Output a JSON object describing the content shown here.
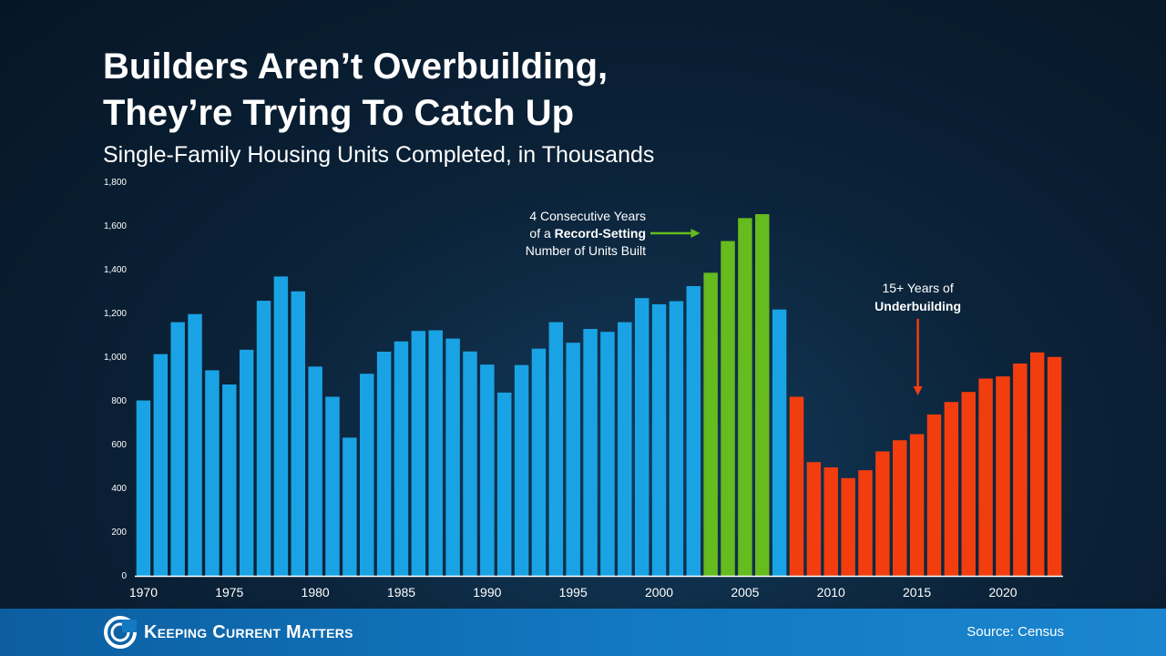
{
  "title_line1": "Builders Aren’t Overbuilding,",
  "title_line2": "They’re Trying To Catch Up",
  "subtitle": "Single-Family Housing Units Completed, in Thousands",
  "footer": {
    "brand": "Keeping Current Matters",
    "source": "Source: Census"
  },
  "colors": {
    "historic": "#1aa3e4",
    "record": "#66bb1e",
    "underbuilding": "#f23d0f",
    "background": "#0b2238",
    "footer": "#1279c2"
  },
  "chart_data": {
    "type": "bar",
    "x": [
      1970,
      1971,
      1972,
      1973,
      1974,
      1975,
      1976,
      1977,
      1978,
      1979,
      1980,
      1981,
      1982,
      1983,
      1984,
      1985,
      1986,
      1987,
      1988,
      1989,
      1990,
      1991,
      1992,
      1993,
      1994,
      1995,
      1996,
      1997,
      1998,
      1999,
      2000,
      2001,
      2002,
      2003,
      2004,
      2005,
      2006,
      2007,
      2008,
      2009,
      2010,
      2011,
      2012,
      2013,
      2014,
      2015,
      2016,
      2017,
      2018,
      2019,
      2020,
      2021,
      2022,
      2023
    ],
    "values": [
      802,
      1014,
      1160,
      1197,
      940,
      875,
      1034,
      1258,
      1369,
      1301,
      957,
      819,
      632,
      924,
      1025,
      1072,
      1120,
      1123,
      1085,
      1026,
      966,
      838,
      964,
      1039,
      1160,
      1066,
      1129,
      1116,
      1160,
      1270,
      1242,
      1256,
      1325,
      1386,
      1531,
      1636,
      1654,
      1218,
      819,
      520,
      496,
      447,
      483,
      569,
      620,
      648,
      738,
      795,
      841,
      902,
      912,
      971,
      1022,
      1001
    ],
    "groups": [
      {
        "name": "historic",
        "from": 1970,
        "to": 2002
      },
      {
        "name": "record",
        "from": 2003,
        "to": 2006
      },
      {
        "name": "historic",
        "from": 2007,
        "to": 2007
      },
      {
        "name": "underbuilding",
        "from": 2008,
        "to": 2023
      }
    ],
    "xticks": [
      1970,
      1975,
      1980,
      1985,
      1990,
      1995,
      2000,
      2005,
      2010,
      2015,
      2020
    ],
    "yticks": [
      0,
      200,
      400,
      600,
      800,
      1000,
      1200,
      1400,
      1600,
      1800
    ],
    "ytick_labels": [
      "0",
      "200",
      "400",
      "600",
      "800",
      "1,000",
      "1,200",
      "1,400",
      "1,600",
      "1,800"
    ],
    "ylim": [
      0,
      1800
    ],
    "grid": false,
    "annotations": [
      {
        "id": "record",
        "lines": [
          "4 Consecutive Years",
          "of a |Record-Setting",
          "Number of Units Built"
        ],
        "line1": "4 Consecutive Years",
        "line2_prefix": "of a ",
        "line2_bold": "Record-Setting",
        "line3": "Number of Units Built",
        "arrow": "right",
        "target_year": 2003,
        "target_value": 1560
      },
      {
        "id": "underbuilding",
        "line1": "15+ Years of",
        "line2_bold": "Underbuilding",
        "arrow": "down",
        "target_year": 2015,
        "target_value": 850
      }
    ]
  }
}
